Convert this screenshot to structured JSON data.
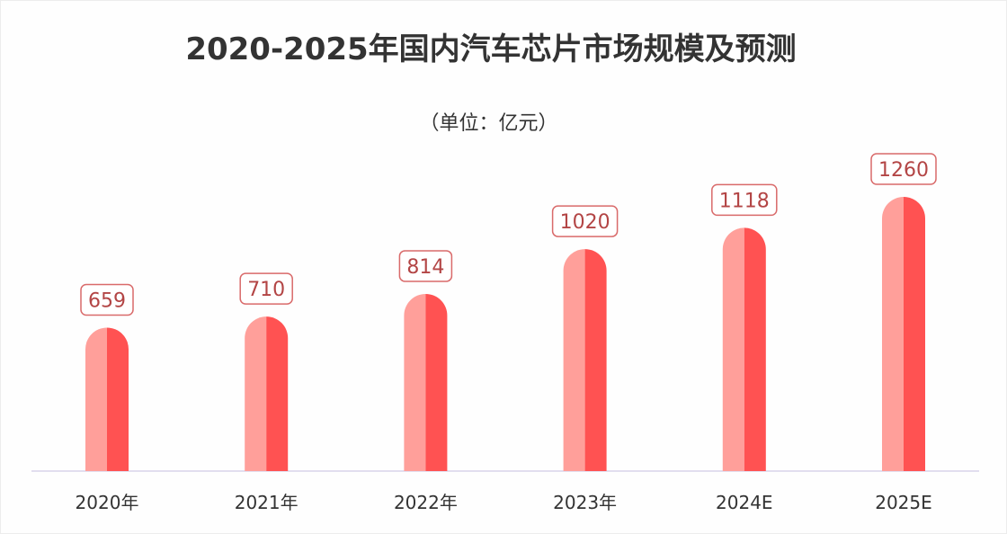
{
  "chart_data": {
    "type": "bar",
    "title": "2020-2025年国内汽车芯片市场规模及预测",
    "subtitle": "（单位：亿元）",
    "categories": [
      "2020年",
      "2021年",
      "2022年",
      "2023年",
      "2024E",
      "2025E"
    ],
    "values": [
      659,
      710,
      814,
      1020,
      1118,
      1260
    ],
    "data_labels": [
      "659",
      "710",
      "814",
      "1020",
      "1118",
      "1260"
    ],
    "ylim": [
      0,
      1260
    ],
    "grid": false,
    "legend": "none",
    "colors": {
      "bar_light": "#ff9f9a",
      "bar_dark": "#ff5252",
      "label_border": "#d96a6a",
      "label_text": "#b34545",
      "axis": "#d9d4ea",
      "tick_text": "#333333"
    }
  }
}
